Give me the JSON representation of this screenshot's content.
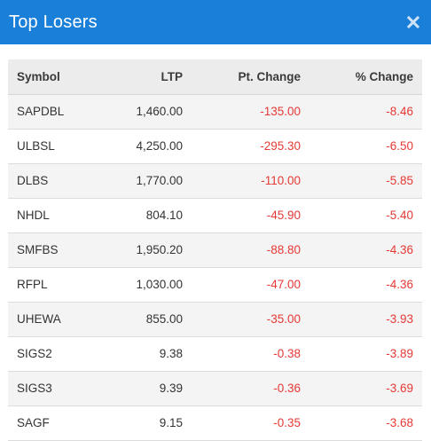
{
  "header": {
    "title": "Top Losers",
    "close_icon": "close-icon"
  },
  "table": {
    "columns": [
      "Symbol",
      "LTP",
      "Pt. Change",
      "% Change"
    ],
    "rows": [
      {
        "symbol": "SAPDBL",
        "ltp": "1,460.00",
        "pt_change": "-135.00",
        "pct_change": "-8.46"
      },
      {
        "symbol": "ULBSL",
        "ltp": "4,250.00",
        "pt_change": "-295.30",
        "pct_change": "-6.50"
      },
      {
        "symbol": "DLBS",
        "ltp": "1,770.00",
        "pt_change": "-110.00",
        "pct_change": "-5.85"
      },
      {
        "symbol": "NHDL",
        "ltp": "804.10",
        "pt_change": "-45.90",
        "pct_change": "-5.40"
      },
      {
        "symbol": "SMFBS",
        "ltp": "1,950.20",
        "pt_change": "-88.80",
        "pct_change": "-4.36"
      },
      {
        "symbol": "RFPL",
        "ltp": "1,030.00",
        "pt_change": "-47.00",
        "pct_change": "-4.36"
      },
      {
        "symbol": "UHEWA",
        "ltp": "855.00",
        "pt_change": "-35.00",
        "pct_change": "-3.93"
      },
      {
        "symbol": "SIGS2",
        "ltp": "9.38",
        "pt_change": "-0.38",
        "pct_change": "-3.89"
      },
      {
        "symbol": "SIGS3",
        "ltp": "9.39",
        "pt_change": "-0.36",
        "pct_change": "-3.69"
      },
      {
        "symbol": "SAGF",
        "ltp": "9.15",
        "pt_change": "-0.35",
        "pct_change": "-3.68"
      }
    ]
  },
  "colors": {
    "header_bg": "#1a7fd8",
    "negative": "#e53935"
  }
}
